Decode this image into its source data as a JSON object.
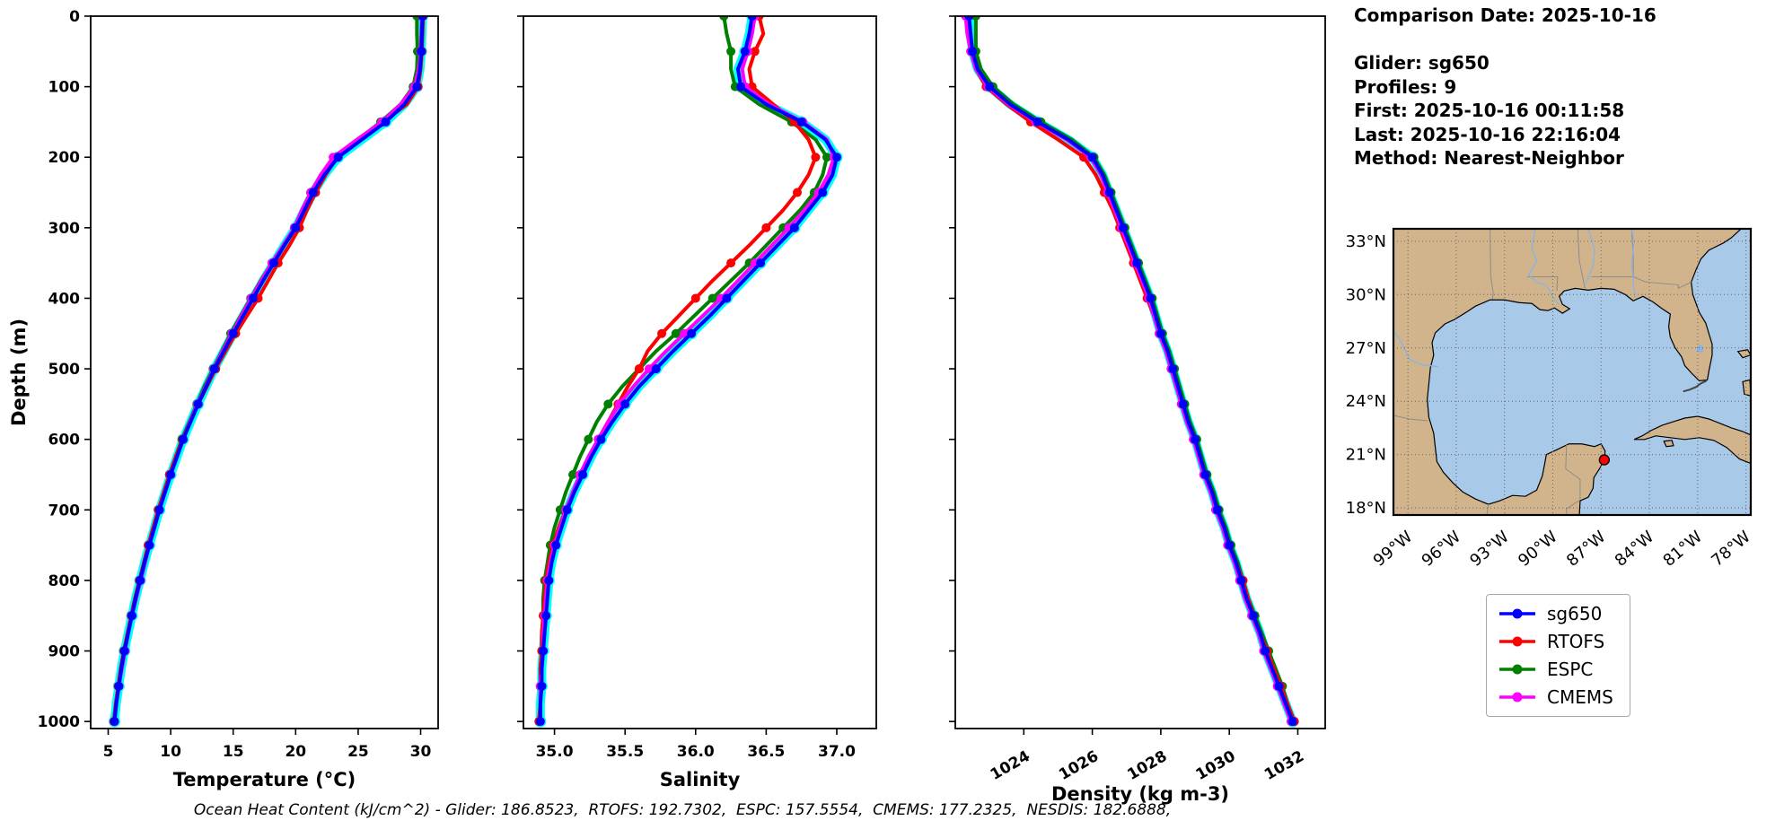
{
  "info_panel": {
    "comparison_date": "Comparison Date: 2025-10-16",
    "glider": "Glider: sg650",
    "profiles": "Profiles: 9",
    "first": "First: 2025-10-16 00:11:58",
    "last": "Last: 2025-10-16 22:16:04",
    "method": "Method: Nearest-Neighbor"
  },
  "caption": "Ocean Heat Content (kJ/cm^2) - Glider: 186.8523,  RTOFS: 192.7302,  ESPC: 157.5554,  CMEMS: 177.2325,  NESDIS: 182.6888,",
  "legend": {
    "entries": [
      {
        "label": "sg650",
        "color": "#0000ff"
      },
      {
        "label": "RTOFS",
        "color": "#ff0000"
      },
      {
        "label": "ESPC",
        "color": "#008000"
      },
      {
        "label": "CMEMS",
        "color": "#ff00ff"
      }
    ]
  },
  "map": {
    "xticklabels": [
      "99°W",
      "96°W",
      "93°W",
      "90°W",
      "87°W",
      "84°W",
      "81°W",
      "78°W"
    ],
    "yticklabels": [
      "18°N",
      "21°N",
      "24°N",
      "27°N",
      "30°N",
      "33°N"
    ],
    "lon_ticks": [
      -99,
      -96,
      -93,
      -90,
      -87,
      -84,
      -81,
      -78
    ],
    "lat_ticks": [
      18,
      21,
      24,
      27,
      30,
      33
    ],
    "lon_range": [
      -99.9,
      -77.7
    ],
    "lat_range": [
      17.6,
      33.7
    ],
    "marker": {
      "lon": -86.8,
      "lat": 20.7,
      "color": "#ff0000"
    },
    "land_color": "#d2b48c",
    "ocean_color": "#a9c9e8"
  },
  "depth_grid": [
    0,
    25,
    50,
    75,
    100,
    125,
    150,
    175,
    200,
    225,
    250,
    275,
    300,
    325,
    350,
    375,
    400,
    425,
    450,
    475,
    500,
    525,
    550,
    575,
    600,
    625,
    650,
    675,
    700,
    725,
    750,
    775,
    800,
    825,
    850,
    875,
    900,
    925,
    950,
    975,
    1000
  ],
  "chart_data": [
    {
      "type": "line",
      "xlabel": "Temperature (°C)",
      "ylabel": "Depth (m)",
      "xlim": [
        3.6,
        31.4
      ],
      "ylim": [
        0,
        1010
      ],
      "xticks": [
        5,
        10,
        15,
        20,
        25,
        30
      ],
      "xtick_labels": [
        "5",
        "10",
        "15",
        "20",
        "25",
        "30"
      ],
      "yticks": [
        0,
        100,
        200,
        300,
        400,
        500,
        600,
        700,
        800,
        900,
        1000
      ],
      "ytick_labels": [
        "0",
        "100",
        "200",
        "300",
        "400",
        "500",
        "600",
        "700",
        "800",
        "900",
        "1000"
      ],
      "show_ytick_labels": true,
      "xtick_rotation": 0,
      "series": [
        {
          "name": "sg650",
          "color": "#0000ff",
          "halo_color": "#00ffff",
          "values": [
            30.15,
            30.1,
            30.05,
            29.95,
            29.7,
            28.7,
            27.2,
            25.3,
            23.4,
            22.3,
            21.4,
            20.7,
            20.0,
            19.1,
            18.25,
            17.4,
            16.6,
            15.8,
            15.0,
            14.25,
            13.5,
            12.85,
            12.2,
            11.6,
            11.0,
            10.5,
            10.0,
            9.55,
            9.1,
            8.7,
            8.3,
            7.9,
            7.55,
            7.2,
            6.9,
            6.6,
            6.3,
            6.05,
            5.85,
            5.65,
            5.5
          ]
        },
        {
          "name": "RTOFS",
          "color": "#ff0000",
          "values": [
            30.2,
            30.15,
            30.1,
            30.0,
            29.8,
            28.9,
            27.0,
            25.0,
            23.3,
            22.4,
            21.6,
            20.9,
            20.3,
            19.5,
            18.6,
            17.8,
            17.0,
            16.1,
            15.2,
            14.4,
            13.6,
            12.9,
            12.2,
            11.55,
            10.95,
            10.4,
            9.9,
            9.45,
            9.0,
            8.6,
            8.2,
            7.85,
            7.5,
            7.15,
            6.85,
            6.55,
            6.25,
            6.0,
            5.8,
            5.6,
            5.45
          ]
        },
        {
          "name": "ESPC",
          "color": "#008000",
          "values": [
            29.7,
            29.7,
            29.75,
            29.7,
            29.4,
            28.4,
            26.8,
            25.0,
            23.2,
            22.1,
            21.2,
            20.5,
            19.9,
            19.0,
            18.1,
            17.2,
            16.4,
            15.6,
            14.8,
            14.1,
            13.4,
            12.7,
            12.1,
            11.5,
            10.9,
            10.4,
            9.95,
            9.5,
            9.05,
            8.65,
            8.25,
            7.9,
            7.5,
            7.15,
            6.85,
            6.55,
            6.3,
            6.05,
            5.85,
            5.65,
            5.5
          ]
        },
        {
          "name": "CMEMS",
          "color": "#ff00ff",
          "values": [
            30.1,
            30.05,
            30.0,
            29.85,
            29.5,
            28.4,
            26.9,
            24.9,
            23.0,
            22.0,
            21.2,
            20.5,
            19.9,
            19.0,
            18.1,
            17.25,
            16.45,
            15.65,
            14.9,
            14.15,
            13.45,
            12.8,
            12.15,
            11.55,
            11.0,
            10.5,
            10.0,
            9.55,
            9.1,
            8.7,
            8.3,
            7.95,
            7.6,
            7.25,
            6.9,
            6.6,
            6.35,
            6.1,
            5.85,
            5.65,
            5.5
          ]
        }
      ]
    },
    {
      "type": "line",
      "xlabel": "Salinity",
      "ylabel": "",
      "xlim": [
        34.78,
        37.28
      ],
      "ylim": [
        0,
        1010
      ],
      "xticks": [
        35.0,
        35.5,
        36.0,
        36.5,
        37.0
      ],
      "xtick_labels": [
        "35.0",
        "35.5",
        "36.0",
        "36.5",
        "37.0"
      ],
      "yticks": [
        0,
        100,
        200,
        300,
        400,
        500,
        600,
        700,
        800,
        900,
        1000
      ],
      "ytick_labels": [
        "0",
        "100",
        "200",
        "300",
        "400",
        "500",
        "600",
        "700",
        "800",
        "900",
        "1000"
      ],
      "show_ytick_labels": false,
      "xtick_rotation": 0,
      "series": [
        {
          "name": "sg650",
          "color": "#0000ff",
          "halo_color": "#00ffff",
          "values": [
            36.4,
            36.38,
            36.35,
            36.3,
            36.32,
            36.5,
            36.75,
            36.92,
            37.0,
            36.97,
            36.9,
            36.8,
            36.7,
            36.58,
            36.46,
            36.34,
            36.22,
            36.1,
            35.97,
            35.84,
            35.72,
            35.6,
            35.5,
            35.41,
            35.33,
            35.26,
            35.2,
            35.14,
            35.09,
            35.05,
            35.01,
            34.98,
            34.96,
            34.95,
            34.94,
            34.93,
            34.92,
            34.91,
            34.91,
            34.9,
            34.9
          ]
        },
        {
          "name": "RTOFS",
          "color": "#ff0000",
          "values": [
            36.45,
            36.48,
            36.42,
            36.38,
            36.4,
            36.55,
            36.7,
            36.8,
            36.85,
            36.8,
            36.72,
            36.62,
            36.5,
            36.38,
            36.25,
            36.12,
            36.0,
            35.88,
            35.76,
            35.66,
            35.6,
            35.52,
            35.45,
            35.38,
            35.31,
            35.25,
            35.19,
            35.13,
            35.08,
            35.03,
            34.99,
            34.96,
            34.94,
            34.93,
            34.92,
            34.91,
            34.91,
            34.9,
            34.9,
            34.9,
            34.89
          ]
        },
        {
          "name": "ESPC",
          "color": "#008000",
          "values": [
            36.2,
            36.22,
            36.25,
            36.25,
            36.28,
            36.45,
            36.68,
            36.85,
            36.93,
            36.9,
            36.84,
            36.74,
            36.62,
            36.5,
            36.38,
            36.25,
            36.12,
            35.99,
            35.86,
            35.72,
            35.6,
            35.48,
            35.38,
            35.3,
            35.24,
            35.18,
            35.13,
            35.08,
            35.04,
            35.0,
            34.97,
            34.95,
            34.93,
            34.92,
            34.92,
            34.91,
            34.91,
            34.9,
            34.9,
            34.9,
            34.89
          ]
        },
        {
          "name": "CMEMS",
          "color": "#ff00ff",
          "values": [
            36.42,
            36.4,
            36.37,
            36.33,
            36.35,
            36.52,
            36.76,
            36.93,
            36.98,
            36.94,
            36.87,
            36.77,
            36.66,
            36.54,
            36.42,
            36.3,
            36.18,
            36.05,
            35.92,
            35.79,
            35.67,
            35.56,
            35.46,
            35.38,
            35.31,
            35.24,
            35.18,
            35.13,
            35.08,
            35.04,
            35.0,
            34.97,
            34.95,
            34.94,
            34.93,
            34.92,
            34.92,
            34.91,
            34.9,
            34.9,
            34.9
          ]
        }
      ]
    },
    {
      "type": "line",
      "xlabel": "Density (kg m-3)",
      "ylabel": "",
      "xlim": [
        1022.0,
        1032.8
      ],
      "ylim": [
        0,
        1010
      ],
      "xticks": [
        1024,
        1026,
        1028,
        1030,
        1032
      ],
      "xtick_labels": [
        "1024",
        "1026",
        "1028",
        "1030",
        "1032"
      ],
      "yticks": [
        0,
        100,
        200,
        300,
        400,
        500,
        600,
        700,
        800,
        900,
        1000
      ],
      "ytick_labels": [
        "0",
        "100",
        "200",
        "300",
        "400",
        "500",
        "600",
        "700",
        "800",
        "900",
        "1000"
      ],
      "show_ytick_labels": false,
      "xtick_rotation": 30,
      "series": [
        {
          "name": "sg650",
          "color": "#0000ff",
          "halo_color": "#00ffff",
          "values": [
            1022.4,
            1022.45,
            1022.5,
            1022.65,
            1023.0,
            1023.6,
            1024.4,
            1025.3,
            1026.0,
            1026.3,
            1026.5,
            1026.7,
            1026.9,
            1027.1,
            1027.3,
            1027.5,
            1027.7,
            1027.85,
            1028.0,
            1028.2,
            1028.35,
            1028.5,
            1028.65,
            1028.8,
            1029.0,
            1029.15,
            1029.3,
            1029.5,
            1029.65,
            1029.85,
            1030.0,
            1030.2,
            1030.35,
            1030.5,
            1030.7,
            1030.9,
            1031.05,
            1031.25,
            1031.45,
            1031.65,
            1031.85
          ]
        },
        {
          "name": "RTOFS",
          "color": "#ff0000",
          "values": [
            1022.35,
            1022.4,
            1022.45,
            1022.6,
            1022.9,
            1023.5,
            1024.2,
            1025.0,
            1025.75,
            1026.1,
            1026.35,
            1026.6,
            1026.8,
            1027.0,
            1027.2,
            1027.4,
            1027.6,
            1027.8,
            1027.95,
            1028.15,
            1028.3,
            1028.45,
            1028.6,
            1028.8,
            1028.95,
            1029.15,
            1029.3,
            1029.5,
            1029.65,
            1029.85,
            1030.0,
            1030.2,
            1030.4,
            1030.55,
            1030.7,
            1030.9,
            1031.1,
            1031.3,
            1031.5,
            1031.7,
            1031.9
          ]
        },
        {
          "name": "ESPC",
          "color": "#008000",
          "values": [
            1022.6,
            1022.6,
            1022.6,
            1022.75,
            1023.1,
            1023.7,
            1024.5,
            1025.4,
            1026.05,
            1026.35,
            1026.55,
            1026.75,
            1026.95,
            1027.15,
            1027.35,
            1027.55,
            1027.75,
            1027.9,
            1028.05,
            1028.25,
            1028.4,
            1028.55,
            1028.7,
            1028.85,
            1029.05,
            1029.2,
            1029.35,
            1029.55,
            1029.7,
            1029.9,
            1030.05,
            1030.25,
            1030.4,
            1030.55,
            1030.75,
            1030.95,
            1031.15,
            1031.35,
            1031.55,
            1031.7,
            1031.9
          ]
        },
        {
          "name": "CMEMS",
          "color": "#ff00ff",
          "values": [
            1022.3,
            1022.35,
            1022.45,
            1022.6,
            1022.95,
            1023.55,
            1024.35,
            1025.25,
            1025.95,
            1026.25,
            1026.45,
            1026.65,
            1026.85,
            1027.05,
            1027.25,
            1027.45,
            1027.65,
            1027.8,
            1027.95,
            1028.15,
            1028.3,
            1028.45,
            1028.6,
            1028.75,
            1028.95,
            1029.1,
            1029.25,
            1029.45,
            1029.6,
            1029.8,
            1029.95,
            1030.15,
            1030.3,
            1030.45,
            1030.65,
            1030.85,
            1031.0,
            1031.2,
            1031.4,
            1031.6,
            1031.8
          ]
        }
      ]
    }
  ]
}
